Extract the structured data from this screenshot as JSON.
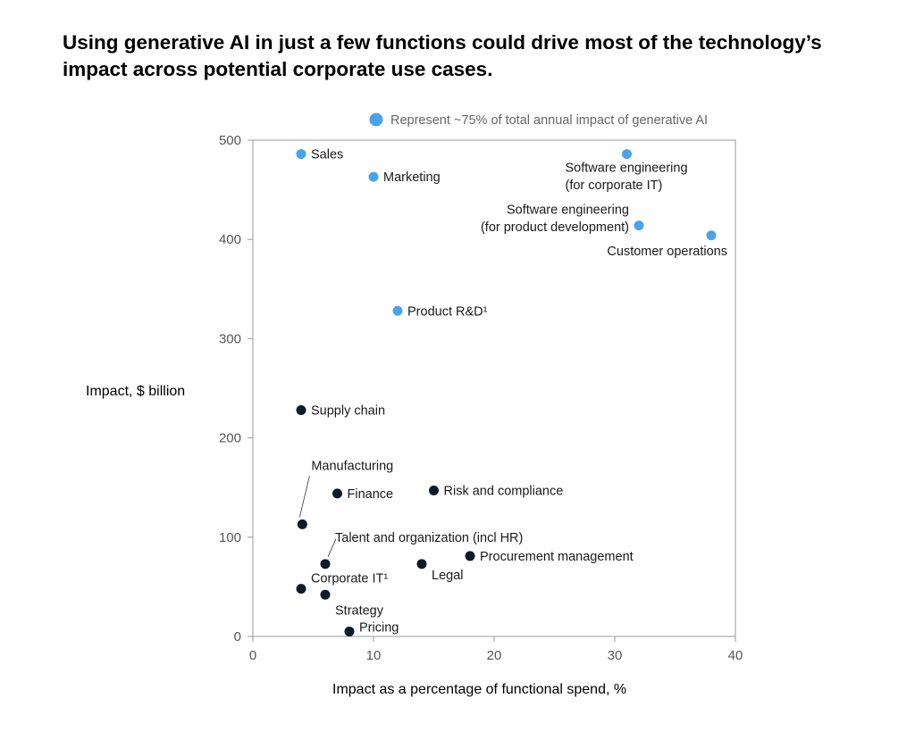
{
  "chart_data": {
    "type": "scatter",
    "title": "Using generative AI in just a few functions could drive most of the technology’s impact across potential corporate use cases.",
    "xlabel": "Impact as a percentage of functional spend, %",
    "ylabel": "Impact, $ billion",
    "xlim": [
      0,
      40
    ],
    "ylim": [
      0,
      500
    ],
    "xticks": [
      "0",
      "10",
      "20",
      "30",
      "40"
    ],
    "yticks": [
      "0",
      "100",
      "200",
      "300",
      "400",
      "500"
    ],
    "legend": {
      "label": "Represent ~75% of total annual impact of generative AI",
      "color": "#4aa3e8",
      "position": "top"
    },
    "colors": {
      "highlight": "#4aa3e8",
      "other": "#0d1b2a"
    },
    "points": [
      {
        "name": "Sales",
        "lines": [
          "Sales"
        ],
        "x": 4,
        "y": 486,
        "highlight": true
      },
      {
        "name": "Marketing",
        "lines": [
          "Marketing"
        ],
        "x": 10,
        "y": 463,
        "highlight": true
      },
      {
        "name": "Software engineering (for corporate IT)",
        "lines": [
          "Software engineering",
          "(for corporate IT)"
        ],
        "x": 31,
        "y": 486,
        "highlight": true
      },
      {
        "name": "Software engineering (for product development)",
        "lines": [
          "Software engineering",
          "(for product development)"
        ],
        "x": 32,
        "y": 414,
        "highlight": true
      },
      {
        "name": "Customer operations",
        "lines": [
          "Customer operations"
        ],
        "x": 38,
        "y": 404,
        "highlight": true
      },
      {
        "name": "Product R&D¹",
        "lines": [
          "Product R&D¹"
        ],
        "x": 12,
        "y": 328,
        "highlight": true
      },
      {
        "name": "Supply chain",
        "lines": [
          "Supply chain"
        ],
        "x": 4,
        "y": 228,
        "highlight": false
      },
      {
        "name": "Manufacturing",
        "lines": [
          "Manufacturing"
        ],
        "x": 4.1,
        "y": 113,
        "highlight": false
      },
      {
        "name": "Finance",
        "lines": [
          "Finance"
        ],
        "x": 7,
        "y": 144,
        "highlight": false
      },
      {
        "name": "Risk and compliance",
        "lines": [
          "Risk and compliance"
        ],
        "x": 15,
        "y": 147,
        "highlight": false
      },
      {
        "name": "Talent and organization (incl HR)",
        "lines": [
          "Talent and organization (incl HR)"
        ],
        "x": 6,
        "y": 73,
        "highlight": false
      },
      {
        "name": "Procurement management",
        "lines": [
          "Procurement management"
        ],
        "x": 18,
        "y": 81,
        "highlight": false
      },
      {
        "name": "Legal",
        "lines": [
          "Legal"
        ],
        "x": 14,
        "y": 73,
        "highlight": false
      },
      {
        "name": "Corporate IT¹",
        "lines": [
          "Corporate IT¹"
        ],
        "x": 4,
        "y": 48,
        "highlight": false
      },
      {
        "name": "Strategy",
        "lines": [
          "Strategy"
        ],
        "x": 6,
        "y": 42,
        "highlight": false
      },
      {
        "name": "Pricing",
        "lines": [
          "Pricing"
        ],
        "x": 8,
        "y": 5,
        "highlight": false
      }
    ]
  }
}
